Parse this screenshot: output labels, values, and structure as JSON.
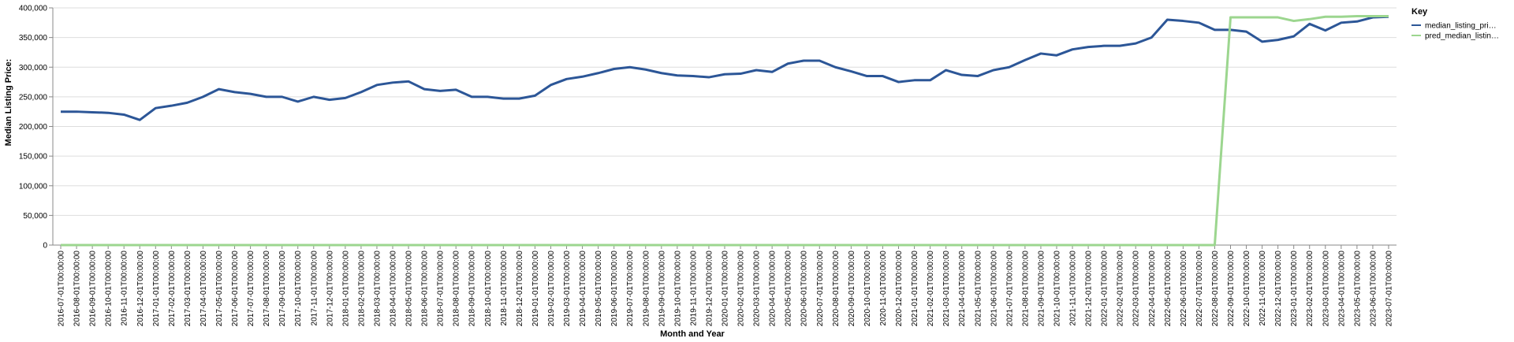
{
  "chart_data": {
    "type": "line",
    "x_label": "Month and Year",
    "y_label": "Median Listing Price:",
    "legend_title": "Key",
    "legend_position": "right",
    "grid": true,
    "categories": [
      "2016-07-01T00:00:00",
      "2016-08-01T00:00:00",
      "2016-09-01T00:00:00",
      "2016-10-01T00:00:00",
      "2016-11-01T00:00:00",
      "2016-12-01T00:00:00",
      "2017-01-01T00:00:00",
      "2017-02-01T00:00:00",
      "2017-03-01T00:00:00",
      "2017-04-01T00:00:00",
      "2017-05-01T00:00:00",
      "2017-06-01T00:00:00",
      "2017-07-01T00:00:00",
      "2017-08-01T00:00:00",
      "2017-09-01T00:00:00",
      "2017-10-01T00:00:00",
      "2017-11-01T00:00:00",
      "2017-12-01T00:00:00",
      "2018-01-01T00:00:00",
      "2018-02-01T00:00:00",
      "2018-03-01T00:00:00",
      "2018-04-01T00:00:00",
      "2018-05-01T00:00:00",
      "2018-06-01T00:00:00",
      "2018-07-01T00:00:00",
      "2018-08-01T00:00:00",
      "2018-09-01T00:00:00",
      "2018-10-01T00:00:00",
      "2018-11-01T00:00:00",
      "2018-12-01T00:00:00",
      "2019-01-01T00:00:00",
      "2019-02-01T00:00:00",
      "2019-03-01T00:00:00",
      "2019-04-01T00:00:00",
      "2019-05-01T00:00:00",
      "2019-06-01T00:00:00",
      "2019-07-01T00:00:00",
      "2019-08-01T00:00:00",
      "2019-09-01T00:00:00",
      "2019-10-01T00:00:00",
      "2019-11-01T00:00:00",
      "2019-12-01T00:00:00",
      "2020-01-01T00:00:00",
      "2020-02-01T00:00:00",
      "2020-03-01T00:00:00",
      "2020-04-01T00:00:00",
      "2020-05-01T00:00:00",
      "2020-06-01T00:00:00",
      "2020-07-01T00:00:00",
      "2020-08-01T00:00:00",
      "2020-09-01T00:00:00",
      "2020-10-01T00:00:00",
      "2020-11-01T00:00:00",
      "2020-12-01T00:00:00",
      "2021-01-01T00:00:00",
      "2021-02-01T00:00:00",
      "2021-03-01T00:00:00",
      "2021-04-01T00:00:00",
      "2021-05-01T00:00:00",
      "2021-06-01T00:00:00",
      "2021-07-01T00:00:00",
      "2021-08-01T00:00:00",
      "2021-09-01T00:00:00",
      "2021-10-01T00:00:00",
      "2021-11-01T00:00:00",
      "2021-12-01T00:00:00",
      "2022-01-01T00:00:00",
      "2022-02-01T00:00:00",
      "2022-03-01T00:00:00",
      "2022-04-01T00:00:00",
      "2022-05-01T00:00:00",
      "2022-06-01T00:00:00",
      "2022-07-01T00:00:00",
      "2022-08-01T00:00:00",
      "2022-09-01T00:00:00",
      "2022-10-01T00:00:00",
      "2022-11-01T00:00:00",
      "2022-12-01T00:00:00",
      "2023-01-01T00:00:00",
      "2023-02-01T00:00:00",
      "2023-03-01T00:00:00",
      "2023-04-01T00:00:00",
      "2023-05-01T00:00:00",
      "2023-06-01T00:00:00",
      "2023-07-01T00:00:00"
    ],
    "series": [
      {
        "name": "median_listing_pri…",
        "color": "#2c5697",
        "values": [
          225000,
          225000,
          224000,
          223000,
          220000,
          211000,
          231000,
          235000,
          240000,
          250000,
          263000,
          258000,
          255000,
          250000,
          250000,
          242000,
          250000,
          245000,
          248000,
          258000,
          270000,
          274000,
          276000,
          263000,
          260000,
          262000,
          250000,
          250000,
          247000,
          247000,
          252000,
          270000,
          280000,
          284000,
          290000,
          297000,
          300000,
          296000,
          290000,
          286000,
          285000,
          283000,
          288000,
          289000,
          295000,
          292000,
          306000,
          311000,
          311000,
          300000,
          293000,
          285000,
          285000,
          275000,
          278000,
          278000,
          295000,
          287000,
          285000,
          295000,
          300000,
          312000,
          323000,
          320000,
          330000,
          334000,
          336000,
          336000,
          340000,
          350000,
          380000,
          378000,
          375000,
          363000,
          363000,
          360000,
          343000,
          346000,
          352000,
          373000,
          362000,
          375000,
          377000,
          384000,
          385000
        ]
      },
      {
        "name": "pred_median_listin…",
        "color": "#9cd68f",
        "values": [
          0,
          0,
          0,
          0,
          0,
          0,
          0,
          0,
          0,
          0,
          0,
          0,
          0,
          0,
          0,
          0,
          0,
          0,
          0,
          0,
          0,
          0,
          0,
          0,
          0,
          0,
          0,
          0,
          0,
          0,
          0,
          0,
          0,
          0,
          0,
          0,
          0,
          0,
          0,
          0,
          0,
          0,
          0,
          0,
          0,
          0,
          0,
          0,
          0,
          0,
          0,
          0,
          0,
          0,
          0,
          0,
          0,
          0,
          0,
          0,
          0,
          0,
          0,
          0,
          0,
          0,
          0,
          0,
          0,
          0,
          0,
          0,
          0,
          0,
          384000,
          384000,
          384000,
          384000,
          378000,
          381000,
          385000,
          385000,
          386000,
          386000,
          386000
        ]
      }
    ],
    "ylim": [
      0,
      400000
    ],
    "yticks": [
      0,
      {
        "value": 50000,
        "label": "50,000"
      },
      {
        "value": 100000,
        "label": "100,000"
      },
      {
        "value": 150000,
        "label": "150,000"
      },
      {
        "value": 200000,
        "label": "200,000"
      },
      {
        "value": 250000,
        "label": "250,000"
      },
      {
        "value": 300000,
        "label": "300,000"
      },
      {
        "value": 350000,
        "label": "350,000"
      },
      {
        "value": 400000,
        "label": "400,000"
      }
    ]
  }
}
